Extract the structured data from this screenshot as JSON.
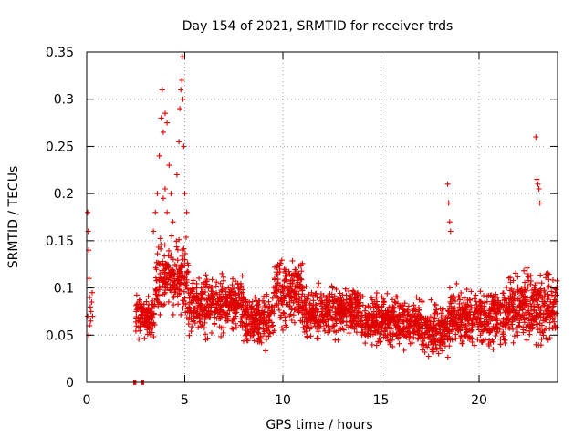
{
  "chart_data": {
    "type": "scatter",
    "title": "Day 154 of 2021, SRMTID for receiver trds",
    "xlabel": "GPS time / hours",
    "ylabel": "SRMTID / TECUs",
    "xlim": [
      0,
      24
    ],
    "ylim": [
      0,
      0.35
    ],
    "x_ticks": [
      0,
      5,
      10,
      15,
      20
    ],
    "x_tick_labels": [
      "0",
      "5",
      "10",
      "15",
      "20"
    ],
    "y_ticks": [
      0,
      0.05,
      0.1,
      0.15,
      0.2,
      0.25,
      0.3,
      0.35
    ],
    "y_tick_labels": [
      "0",
      "0.05",
      "0.1",
      "0.15",
      "0.2",
      "0.25",
      "0.3",
      "0.35"
    ],
    "grid": true,
    "marker": "plus",
    "series_color": "#e00000",
    "series": [
      {
        "name": "SRMTID",
        "points": [
          [
            0.05,
            0.18
          ],
          [
            0.08,
            0.16
          ],
          [
            0.1,
            0.14
          ],
          [
            0.12,
            0.11
          ],
          [
            0.15,
            0.09
          ],
          [
            0.18,
            0.08
          ],
          [
            0.2,
            0.065
          ],
          [
            0.05,
            0.07
          ],
          [
            0.1,
            0.05
          ],
          [
            0.15,
            0.06
          ],
          [
            0.22,
            0.075
          ],
          [
            0.25,
            0.085
          ],
          [
            0.28,
            0.095
          ],
          [
            0.3,
            0.07
          ],
          [
            2.4,
            0.0
          ],
          [
            2.45,
            0.0
          ],
          [
            2.5,
            0.0
          ],
          [
            2.8,
            0.0
          ],
          [
            2.85,
            0.0
          ],
          [
            2.9,
            0.0
          ],
          [
            3.5,
            0.18
          ],
          [
            3.6,
            0.2
          ],
          [
            3.7,
            0.24
          ],
          [
            3.8,
            0.28
          ],
          [
            3.85,
            0.31
          ],
          [
            3.9,
            0.265
          ],
          [
            4.0,
            0.285
          ],
          [
            4.1,
            0.275
          ],
          [
            4.2,
            0.23
          ],
          [
            4.3,
            0.2
          ],
          [
            4.6,
            0.22
          ],
          [
            4.7,
            0.255
          ],
          [
            4.75,
            0.29
          ],
          [
            4.8,
            0.31
          ],
          [
            4.85,
            0.32
          ],
          [
            4.88,
            0.345
          ],
          [
            4.9,
            0.3
          ],
          [
            4.95,
            0.25
          ],
          [
            5.0,
            0.2
          ],
          [
            5.1,
            0.18
          ],
          [
            3.9,
            0.195
          ],
          [
            4.0,
            0.205
          ],
          [
            4.1,
            0.18
          ],
          [
            3.4,
            0.16
          ],
          [
            4.4,
            0.17
          ],
          [
            18.4,
            0.21
          ],
          [
            18.45,
            0.19
          ],
          [
            18.5,
            0.17
          ],
          [
            18.55,
            0.16
          ],
          [
            22.9,
            0.26
          ],
          [
            22.95,
            0.215
          ],
          [
            23.0,
            0.21
          ],
          [
            23.05,
            0.205
          ],
          [
            23.1,
            0.19
          ]
        ],
        "bands": [
          {
            "x": [
              2.5,
              3.5
            ],
            "y": [
              0.04,
              0.1
            ]
          },
          {
            "x": [
              3.5,
              5.2
            ],
            "y": [
              0.06,
              0.16
            ]
          },
          {
            "x": [
              5.2,
              8.0
            ],
            "y": [
              0.04,
              0.12
            ]
          },
          {
            "x": [
              8.0,
              9.5
            ],
            "y": [
              0.03,
              0.1
            ]
          },
          {
            "x": [
              9.5,
              11.0
            ],
            "y": [
              0.05,
              0.14
            ]
          },
          {
            "x": [
              11.0,
              14.0
            ],
            "y": [
              0.04,
              0.11
            ]
          },
          {
            "x": [
              14.0,
              17.0
            ],
            "y": [
              0.03,
              0.1
            ]
          },
          {
            "x": [
              17.0,
              18.5
            ],
            "y": [
              0.02,
              0.09
            ]
          },
          {
            "x": [
              18.5,
              21.5
            ],
            "y": [
              0.03,
              0.11
            ]
          },
          {
            "x": [
              21.5,
              24.0
            ],
            "y": [
              0.03,
              0.13
            ]
          }
        ]
      }
    ]
  }
}
